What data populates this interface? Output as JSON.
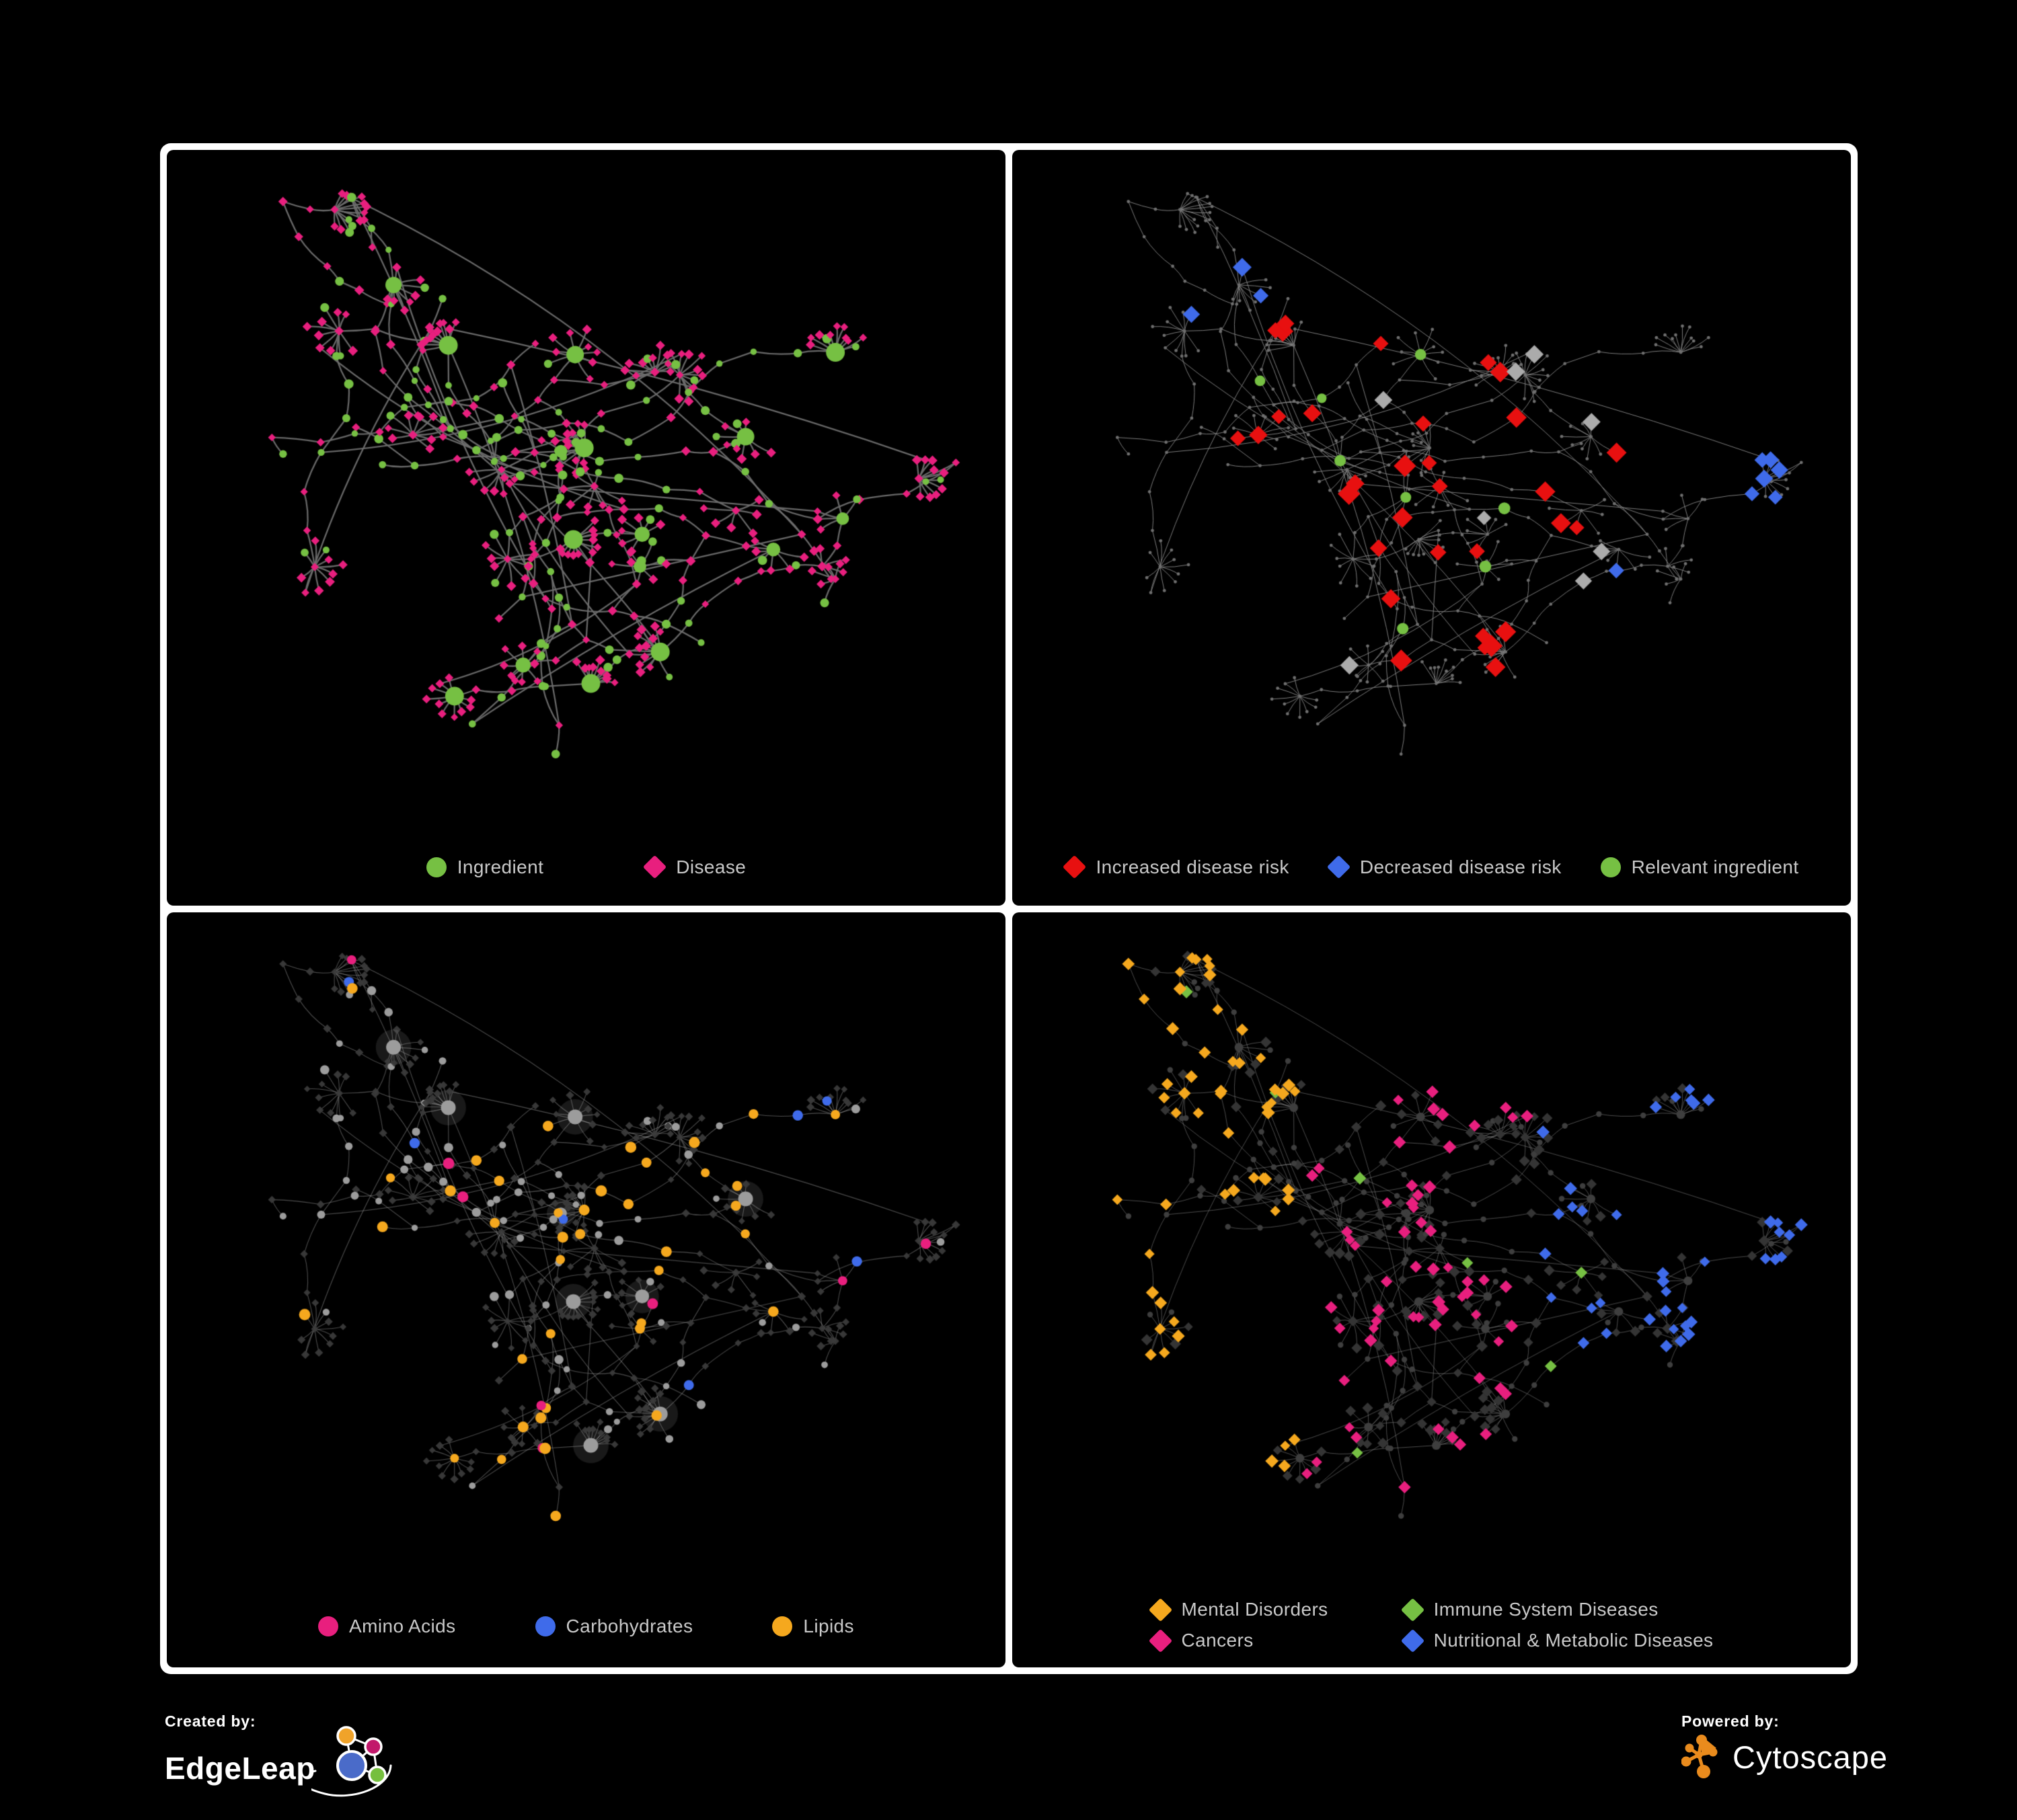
{
  "page": {
    "background": "#000000",
    "panel_border": "#ffffff"
  },
  "palette": {
    "green": "#76C043",
    "pink": "#E81F7E",
    "red": "#E81010",
    "blue": "#3F6BEA",
    "orange": "#F5A81E",
    "silver": "#ABABAB",
    "grey": "#9C9C9C",
    "dark": "#3A3A3A",
    "darker": "#343434",
    "dot": "#6F6F6F",
    "edge1": "#6E6E6E",
    "edge2": "#8A8A8A",
    "edge3": "#979797",
    "edge4": "#9A9A9A",
    "legend_text": "#C9C9C9",
    "edgeleap_orange": "#F0A32A",
    "edgeleap_magenta": "#C2186B",
    "edgeleap_blue": "#4A6BC9",
    "edgeleap_green": "#76BF3E",
    "cytoscape_orange": "#E98B1D"
  },
  "network": {
    "seed": 11,
    "node_count": 460,
    "extra_links": 16
  },
  "panels": [
    {
      "name": "ingredient-disease",
      "mode": "bipartite",
      "edge_style": {
        "color": "edge1",
        "width": 2.3,
        "alpha": 0.95
      },
      "legend_class": "legend-p1",
      "legend": [
        {
          "label": "Ingredient",
          "color": "#76C043",
          "shape": "circle"
        },
        {
          "label": "Disease",
          "color": "#E81F7E",
          "shape": "diamond"
        }
      ]
    },
    {
      "name": "disease-risk",
      "mode": "risk",
      "edge_style": {
        "color": "edge2",
        "width": 1.0,
        "alpha": 0.9
      },
      "legend_class": "legend-p2",
      "legend": [
        {
          "label": "Increased disease risk",
          "color": "#E81010",
          "shape": "diamond"
        },
        {
          "label": "Decreased disease risk",
          "color": "#3F6BEA",
          "shape": "diamond"
        },
        {
          "label": "Relevant ingredient",
          "color": "#76C043",
          "shape": "circle"
        }
      ]
    },
    {
      "name": "macronutrients",
      "mode": "macro",
      "edge_style": {
        "color": "edge3",
        "width": 1.1,
        "alpha": 0.5
      },
      "legend_class": "legend-p3",
      "legend": [
        {
          "label": "Amino Acids",
          "color": "#E81F7E",
          "shape": "circle"
        },
        {
          "label": "Carbohydrates",
          "color": "#3F6BEA",
          "shape": "circle"
        },
        {
          "label": "Lipids",
          "color": "#F5A81E",
          "shape": "circle"
        }
      ]
    },
    {
      "name": "disease-categories",
      "mode": "categories",
      "edge_style": {
        "color": "edge4",
        "width": 0.9,
        "alpha": 0.55
      },
      "legend_class": "legend-p4",
      "legend": [
        {
          "label": "Mental Disorders",
          "color": "#F5A81E",
          "shape": "diamond"
        },
        {
          "label": "Immune System Diseases",
          "color": "#76C043",
          "shape": "diamond"
        },
        {
          "label": "Cancers",
          "color": "#E81F7E",
          "shape": "diamond"
        },
        {
          "label": "Nutritional & Metabolic Diseases",
          "color": "#3F6BEA",
          "shape": "diamond"
        }
      ]
    }
  ],
  "footer": {
    "created_by": "Created by:",
    "brand": "EdgeLeap",
    "powered_by": "Powered by:",
    "engine": "Cytoscape"
  }
}
